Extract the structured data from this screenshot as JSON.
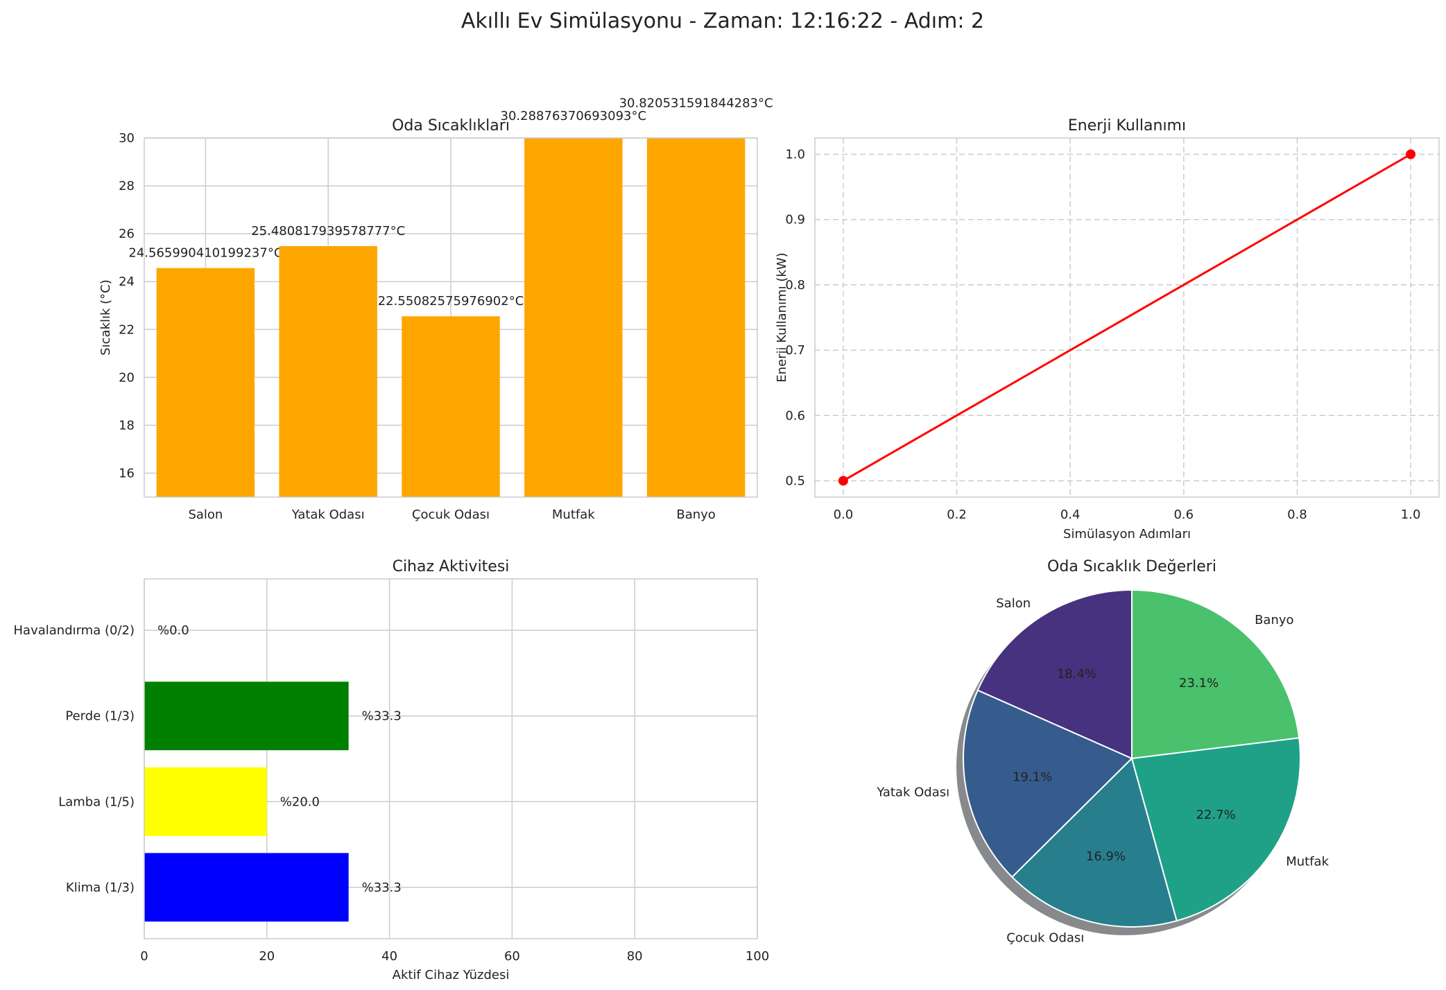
{
  "title": "Akıllı Ev Simülasyonu - Zaman: 12:16:22 - Adım: 2",
  "colors": {
    "temp_bar": "#ffa500",
    "energy_line": "#ff0000",
    "grid": "#cccccc",
    "pie": [
      "#46327e",
      "#365c8d",
      "#277f8e",
      "#1fa187",
      "#4ac16d"
    ]
  },
  "chart_data": [
    {
      "type": "bar",
      "title": "Oda Sıcaklıkları",
      "xlabel": "",
      "ylabel": "Sıcaklık (°C)",
      "categories": [
        "Salon",
        "Yatak Odası",
        "Çocuk Odası",
        "Mutfak",
        "Banyo"
      ],
      "values": [
        24.565990410199237,
        25.480817939578777,
        22.55082575976902,
        30.28876370693093,
        30.820531591844283
      ],
      "value_labels": [
        "24.565990410199237°C",
        "25.480817939578777°C",
        "22.55082575976902°C",
        "30.28876370693093°C",
        "30.820531591844283°C"
      ],
      "ylim": [
        15,
        30
      ],
      "yticks": [
        16,
        18,
        20,
        22,
        24,
        26,
        28,
        30
      ],
      "grid": true
    },
    {
      "type": "line",
      "title": "Enerji Kullanımı",
      "xlabel": "Simülasyon Adımları",
      "ylabel": "Enerji Kullanımı (kW)",
      "x": [
        0,
        1
      ],
      "y": [
        0.5,
        1.0
      ],
      "xlim": [
        -0.05,
        1.05
      ],
      "ylim": [
        0.475,
        1.025
      ],
      "xticks": [
        "0.0",
        "0.2",
        "0.4",
        "0.6",
        "0.8",
        "1.0"
      ],
      "yticks": [
        "0.5",
        "0.6",
        "0.7",
        "0.8",
        "0.9",
        "1.0"
      ],
      "grid": "dashed",
      "marker": "circle"
    },
    {
      "type": "bar",
      "orientation": "horizontal",
      "title": "Cihaz Aktivitesi",
      "xlabel": "Aktif Cihaz Yüzdesi",
      "ylabel": "",
      "categories": [
        "Klima (1/3)",
        "Lamba (1/5)",
        "Perde (1/3)",
        "Havalandırma (0/2)"
      ],
      "values": [
        33.333,
        20.0,
        33.333,
        0.0
      ],
      "value_labels": [
        "%33.3",
        "%20.0",
        "%33.3",
        "%0.0"
      ],
      "colors": [
        "#0000ff",
        "#ffff00",
        "#008000",
        "#ff0000"
      ],
      "xlim": [
        0,
        100
      ],
      "xticks": [
        0,
        20,
        40,
        60,
        80,
        100
      ],
      "grid": true
    },
    {
      "type": "pie",
      "title": "Oda Sıcaklık Değerleri",
      "labels": [
        "Salon",
        "Yatak Odası",
        "Çocuk Odası",
        "Mutfak",
        "Banyo"
      ],
      "values": [
        24.565990410199237,
        25.480817939578777,
        22.55082575976902,
        30.28876370693093,
        30.820531591844283
      ],
      "pct_labels": [
        "18.4%",
        "19.1%",
        "16.9%",
        "22.7%",
        "23.1%"
      ],
      "start_angle": 90,
      "shadow": true
    }
  ]
}
